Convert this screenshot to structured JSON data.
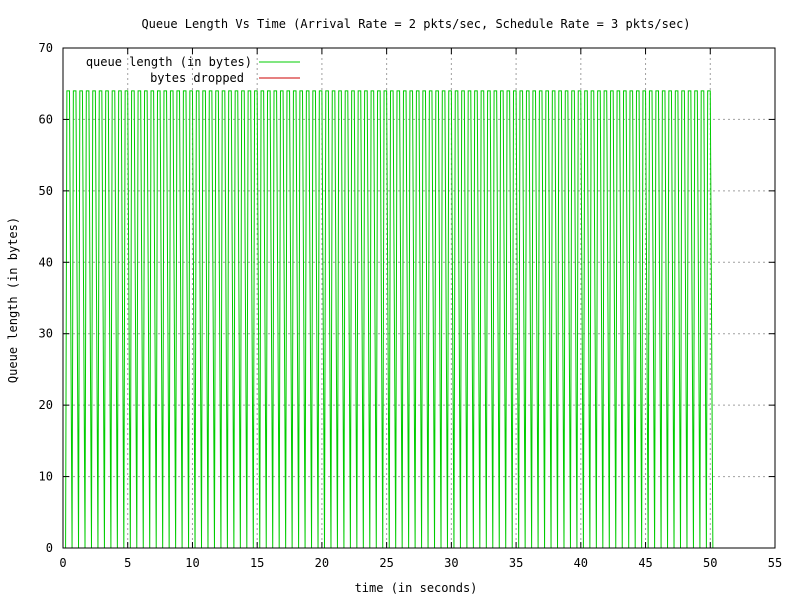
{
  "chart_data": {
    "type": "line",
    "title": "Queue Length Vs Time (Arrival Rate = 2 pkts/sec, Schedule Rate = 3 pkts/sec)",
    "xlabel": "time (in seconds)",
    "ylabel": "Queue length (in bytes)",
    "xlim": [
      0,
      55
    ],
    "ylim": [
      0,
      70
    ],
    "xticks": [
      0,
      5,
      10,
      15,
      20,
      25,
      30,
      35,
      40,
      45,
      50,
      55
    ],
    "yticks": [
      0,
      10,
      20,
      30,
      40,
      50,
      60,
      70
    ],
    "grid": true,
    "legend_position": "top-left",
    "series": [
      {
        "name": "queue length (in bytes)",
        "color": "#00cc00",
        "pattern": {
          "start": 0.2,
          "end": 50.0,
          "period": 0.5,
          "peak_offset": 0.1,
          "peak_width": 0.2,
          "low": 0,
          "high": 64
        }
      },
      {
        "name": "bytes dropped",
        "color": "#cc0000",
        "x": [],
        "y": []
      }
    ]
  }
}
